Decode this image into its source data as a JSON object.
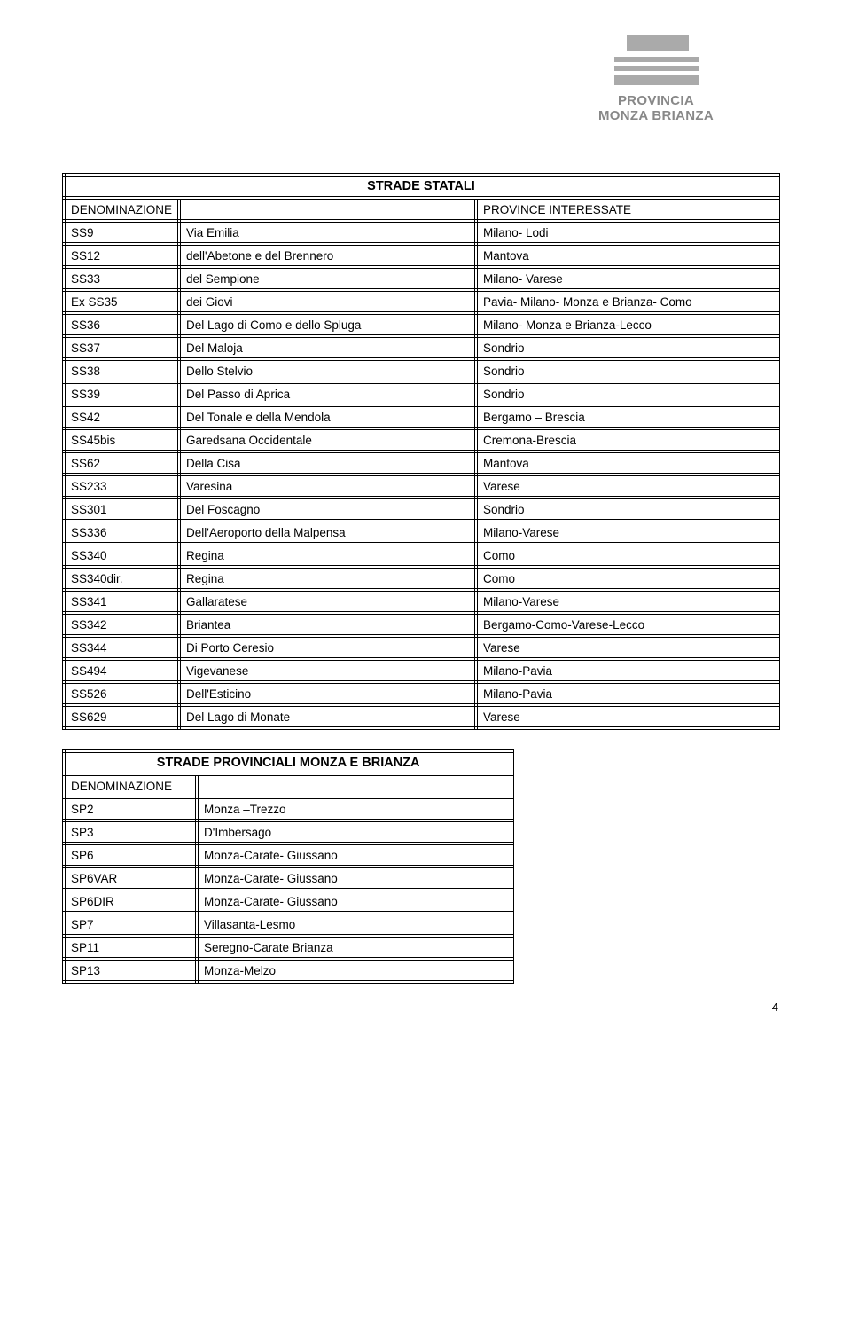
{
  "logo": {
    "line1": "PROVINCIA",
    "line2": "MONZA BRIANZA"
  },
  "table1": {
    "title": "STRADE STATALI",
    "header": {
      "c1": "DENOMINAZIONE",
      "c2": "",
      "c3": "PROVINCE INTERESSATE"
    },
    "rows": [
      {
        "c1": "SS9",
        "c2": "Via Emilia",
        "c3": "Milano- Lodi"
      },
      {
        "c1": "SS12",
        "c2": "dell'Abetone e del Brennero",
        "c3": "Mantova"
      },
      {
        "c1": "SS33",
        "c2": "del Sempione",
        "c3": "Milano- Varese"
      },
      {
        "c1": "Ex SS35",
        "c2": "dei Giovi",
        "c3": "Pavia- Milano- Monza e Brianza- Como"
      },
      {
        "c1": "SS36",
        "c2": "Del Lago di Como e dello Spluga",
        "c3": "Milano- Monza e Brianza-Lecco"
      },
      {
        "c1": "SS37",
        "c2": "Del Maloja",
        "c3": "Sondrio"
      },
      {
        "c1": "SS38",
        "c2": "Dello Stelvio",
        "c3": "Sondrio"
      },
      {
        "c1": "SS39",
        "c2": "Del Passo di Aprica",
        "c3": "Sondrio"
      },
      {
        "c1": "SS42",
        "c2": "Del Tonale e della Mendola",
        "c3": "Bergamo – Brescia"
      },
      {
        "c1": "SS45bis",
        "c2": "Garedsana Occidentale",
        "c3": "Cremona-Brescia"
      },
      {
        "c1": "SS62",
        "c2": "Della Cisa",
        "c3": "Mantova"
      },
      {
        "c1": "SS233",
        "c2": "Varesina",
        "c3": "Varese"
      },
      {
        "c1": "SS301",
        "c2": "Del Foscagno",
        "c3": "Sondrio"
      },
      {
        "c1": "SS336",
        "c2": "Dell'Aeroporto della Malpensa",
        "c3": "Milano-Varese"
      },
      {
        "c1": "SS340",
        "c2": "Regina",
        "c3": "Como"
      },
      {
        "c1": "SS340dir.",
        "c2": "Regina",
        "c3": "Como"
      },
      {
        "c1": "SS341",
        "c2": "Gallaratese",
        "c3": "Milano-Varese"
      },
      {
        "c1": "SS342",
        "c2": "Briantea",
        "c3": "Bergamo-Como-Varese-Lecco"
      },
      {
        "c1": "SS344",
        "c2": "Di Porto Ceresio",
        "c3": "Varese"
      },
      {
        "c1": "SS494",
        "c2": "Vigevanese",
        "c3": "Milano-Pavia"
      },
      {
        "c1": "SS526",
        "c2": "Dell'Esticino",
        "c3": "Milano-Pavia"
      },
      {
        "c1": "SS629",
        "c2": "Del Lago di Monate",
        "c3": "Varese"
      }
    ]
  },
  "table2": {
    "title": "STRADE PROVINCIALI MONZA E BRIANZA",
    "header": {
      "c1": "DENOMINAZIONE",
      "c2": ""
    },
    "rows": [
      {
        "c1": "SP2",
        "c2": "Monza –Trezzo"
      },
      {
        "c1": "SP3",
        "c2": "D'Imbersago"
      },
      {
        "c1": "SP6",
        "c2": "Monza-Carate- Giussano"
      },
      {
        "c1": "SP6VAR",
        "c2": "Monza-Carate- Giussano"
      },
      {
        "c1": "SP6DIR",
        "c2": "Monza-Carate- Giussano"
      },
      {
        "c1": "SP7",
        "c2": "Villasanta-Lesmo"
      },
      {
        "c1": "SP11",
        "c2": "Seregno-Carate Brianza"
      },
      {
        "c1": "SP13",
        "c2": "Monza-Melzo"
      }
    ]
  },
  "page_number": "4"
}
